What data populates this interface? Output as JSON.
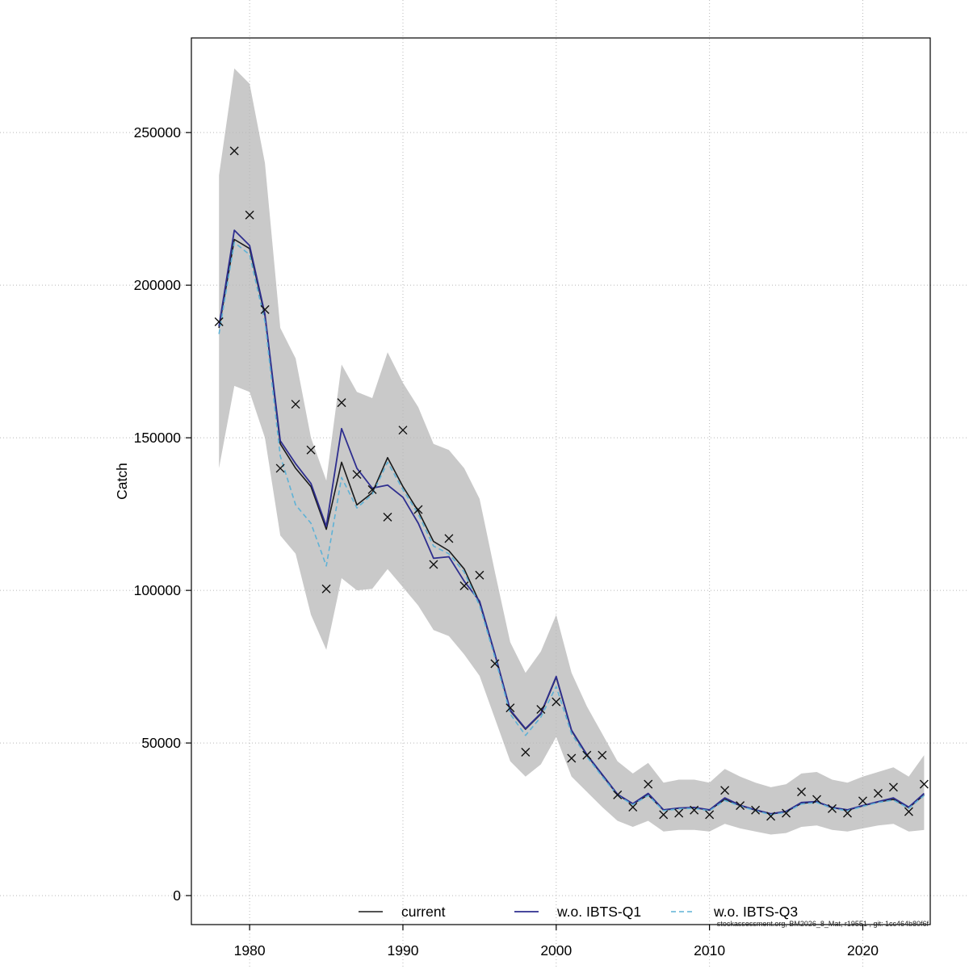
{
  "figure": {
    "footer_note": "stockassessment.org, BM2026_8_Mat, r19551 , git: 1cc464b80f6f"
  },
  "chart_data": {
    "type": "line",
    "title": "",
    "xlabel": "",
    "ylabel": "Catch",
    "x_ticks": [
      1980,
      1990,
      2000,
      2010,
      2020
    ],
    "x_tick_labels": [
      "1980",
      "1990",
      "2000",
      "2010",
      "2020"
    ],
    "y_ticks": [
      0,
      50000,
      100000,
      150000,
      200000,
      250000
    ],
    "y_tick_labels": [
      "0",
      "50000",
      "100000",
      "150000",
      "200000",
      "250000"
    ],
    "xlim": [
      1976.2,
      2024.4
    ],
    "ylim": [
      -9500,
      281000
    ],
    "grid": true,
    "legend_position": "bottom-inside",
    "colors": {
      "band": "#c9c9c9",
      "current": "#1a1a1a",
      "wo_ibts_q1": "#2e2e8f",
      "wo_ibts_q3": "#5fb2d6",
      "observed": "#111111",
      "grid": "#b8b8b8",
      "box": "#000000"
    },
    "years": [
      1978,
      1979,
      1980,
      1981,
      1982,
      1983,
      1984,
      1985,
      1986,
      1987,
      1988,
      1989,
      1990,
      1991,
      1992,
      1993,
      1994,
      1995,
      1996,
      1997,
      1998,
      1999,
      2000,
      2001,
      2002,
      2003,
      2004,
      2005,
      2006,
      2007,
      2008,
      2009,
      2010,
      2011,
      2012,
      2013,
      2014,
      2015,
      2016,
      2017,
      2018,
      2019,
      2020,
      2021,
      2022,
      2023,
      2024
    ],
    "observed": {
      "marker": "x",
      "values": [
        188000,
        244000,
        223000,
        192000,
        140000,
        161000,
        146000,
        100500,
        161500,
        138000,
        133000,
        124000,
        152500,
        126500,
        108500,
        117000,
        101500,
        105000,
        76000,
        61500,
        47000,
        61000,
        63500,
        45000,
        46000,
        46000,
        33000,
        29000,
        36500,
        26500,
        27000,
        28000,
        26500,
        34500,
        29500,
        28000,
        26000,
        27000,
        34000,
        31500,
        28500,
        27000,
        31000,
        33500,
        35500,
        27500,
        36500
      ]
    },
    "series": [
      {
        "name": "current",
        "style": "solid",
        "color_key": "current",
        "values": [
          186000,
          215000,
          212000,
          190000,
          148000,
          140000,
          134000,
          120000,
          142000,
          128000,
          132000,
          143500,
          134000,
          126000,
          116000,
          113000,
          107000,
          96000,
          79000,
          60500,
          54500,
          59500,
          71500,
          54000,
          46000,
          39500,
          33000,
          30000,
          33000,
          28000,
          28600,
          28800,
          28000,
          31500,
          29500,
          28000,
          26700,
          27500,
          30200,
          30700,
          28800,
          28000,
          29400,
          30700,
          31500,
          28800,
          33000
        ]
      },
      {
        "name": "w.o. IBTS-Q1",
        "style": "solid",
        "color_key": "wo_ibts_q1",
        "values": [
          186500,
          218000,
          213000,
          190500,
          149000,
          141500,
          135000,
          121000,
          153000,
          140000,
          133500,
          134500,
          130500,
          122000,
          110500,
          111000,
          103000,
          96500,
          79200,
          60800,
          54700,
          59700,
          71800,
          54200,
          46200,
          39700,
          33200,
          30100,
          33500,
          28100,
          28700,
          28900,
          28100,
          32000,
          29600,
          28100,
          26800,
          27600,
          30500,
          30800,
          28900,
          28100,
          29500,
          30800,
          32000,
          29000,
          33500
        ]
      },
      {
        "name": "w.o. IBTS-Q3",
        "style": "dashed",
        "color_key": "wo_ibts_q3",
        "values": [
          184000,
          214000,
          210000,
          188000,
          144000,
          128000,
          122000,
          108000,
          137000,
          127000,
          131500,
          142000,
          133000,
          125000,
          114500,
          112000,
          106000,
          95000,
          78000,
          59500,
          52500,
          58500,
          68500,
          53000,
          45500,
          39000,
          32800,
          29800,
          32800,
          27800,
          28400,
          28600,
          27800,
          31200,
          29300,
          27800,
          26500,
          27300,
          30000,
          30500,
          28600,
          27800,
          29200,
          30500,
          31300,
          28600,
          32800
        ]
      }
    ],
    "band": {
      "lo": [
        140000,
        167000,
        165000,
        150000,
        118000,
        112000,
        92000,
        80500,
        104000,
        100000,
        100500,
        107000,
        101000,
        95000,
        87000,
        85000,
        79000,
        72000,
        58000,
        44000,
        39000,
        43000,
        52000,
        39000,
        34000,
        29000,
        24500,
        22500,
        24500,
        21000,
        21500,
        21500,
        21000,
        23500,
        22000,
        21000,
        20000,
        20500,
        22500,
        23000,
        21500,
        21000,
        22000,
        23000,
        23500,
        21000,
        21500
      ],
      "hi": [
        236000,
        271000,
        266000,
        240000,
        186000,
        176000,
        150000,
        136000,
        174000,
        165000,
        163000,
        178000,
        168000,
        160000,
        148000,
        146000,
        140000,
        130000,
        106000,
        83000,
        73000,
        80000,
        92000,
        73000,
        62000,
        53000,
        44000,
        40000,
        43500,
        37000,
        38000,
        38000,
        37000,
        41500,
        39000,
        37000,
        35500,
        36500,
        40000,
        40500,
        38000,
        37000,
        39000,
        40500,
        42000,
        39000,
        46000
      ]
    }
  }
}
